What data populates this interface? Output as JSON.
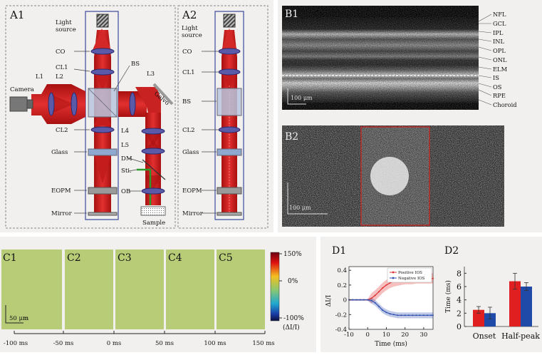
{
  "panels": {
    "a1": "A1",
    "a2": "A2",
    "b1": "B1",
    "b2": "B2",
    "c": [
      "C1",
      "C2",
      "C3",
      "C4",
      "C5"
    ],
    "d1": "D1",
    "d2": "D2"
  },
  "optics_labels_a1": {
    "light_source": [
      "Light",
      "source"
    ],
    "co": "CO",
    "cl1": "CL1",
    "bs": "BS",
    "l1": "L1",
    "l2": "L2",
    "l3": "L3",
    "camera": "Camera",
    "galvo": "Galvo",
    "cl2": "CL2",
    "l4": "L4",
    "l5": "L5",
    "glass": "Glass",
    "dm": "DM",
    "sti": "Sti.",
    "eopm": "EOPM",
    "ob": "OB",
    "mirror": "Mirror",
    "sample": "Sample"
  },
  "optics_labels_a2": {
    "light_source": [
      "Light",
      "source"
    ],
    "co": "CO",
    "cl1": "CL1",
    "bs": "BS",
    "cl2": "CL2",
    "glass": "Glass",
    "eopm": "EOPM",
    "mirror": "Mirror"
  },
  "retina_layers": [
    "NFL",
    "GCL",
    "IPL",
    "INL",
    "OPL",
    "ONL",
    "ELM",
    "IS",
    "OS",
    "RPE",
    "Choroid"
  ],
  "scalebars": {
    "b1": "100 μm",
    "b2": "100 μm",
    "c1": "50 μm"
  },
  "colorbar": {
    "ticks": [
      "150%",
      "0%",
      "-100%"
    ],
    "label": "(ΔI/I)"
  },
  "time_axis": [
    "-100 ms",
    "-50 ms",
    "0 ms",
    "50 ms",
    "100 ms",
    "150 ms"
  ],
  "chart_data": [
    {
      "type": "line",
      "panel": "D1",
      "xlabel": "Time (ms)",
      "ylabel": "ΔI/I",
      "xlim": [
        -10,
        35
      ],
      "ylim": [
        -0.4,
        0.45
      ],
      "xticks": [
        -10,
        0,
        10,
        20,
        30
      ],
      "yticks": [
        -0.4,
        -0.2,
        0,
        0.2,
        0.4
      ],
      "legend": "top-right",
      "series": [
        {
          "name": "Positive IOS",
          "color": "#e03030",
          "x": [
            -10,
            -8,
            -6,
            -4,
            -2,
            0,
            2,
            4,
            6,
            8,
            10,
            12,
            14,
            16,
            18,
            20,
            22,
            24,
            26,
            28,
            30,
            32,
            34,
            35
          ],
          "y": [
            0,
            0,
            0,
            0,
            0,
            0,
            0.02,
            0.06,
            0.11,
            0.16,
            0.2,
            0.23,
            0.25,
            0.26,
            0.27,
            0.28,
            0.28,
            0.28,
            0.29,
            0.29,
            0.29,
            0.29,
            0.29,
            0.29
          ],
          "band": 0.07
        },
        {
          "name": "Negative IOS",
          "color": "#3050b0",
          "x": [
            -10,
            -8,
            -6,
            -4,
            -2,
            0,
            2,
            4,
            6,
            8,
            10,
            12,
            14,
            16,
            18,
            20,
            22,
            24,
            26,
            28,
            30,
            32,
            34,
            35
          ],
          "y": [
            0,
            0,
            0,
            0,
            0,
            0,
            -0.01,
            -0.04,
            -0.09,
            -0.14,
            -0.17,
            -0.19,
            -0.2,
            -0.21,
            -0.21,
            -0.21,
            -0.21,
            -0.21,
            -0.21,
            -0.21,
            -0.21,
            -0.21,
            -0.21,
            -0.21
          ],
          "band": 0.04
        }
      ]
    },
    {
      "type": "bar",
      "panel": "D2",
      "ylabel": "Time (ms)",
      "ylim": [
        0,
        9
      ],
      "yticks": [
        0,
        2,
        4,
        6,
        8
      ],
      "categories": [
        "Onset",
        "Half-peak"
      ],
      "series": [
        {
          "color": "#e02020",
          "values": [
            2.5,
            6.8
          ],
          "err": [
            0.5,
            1.2
          ]
        },
        {
          "color": "#1f4aa8",
          "values": [
            2.0,
            6.0
          ],
          "err": [
            0.9,
            0.6
          ]
        }
      ]
    }
  ]
}
